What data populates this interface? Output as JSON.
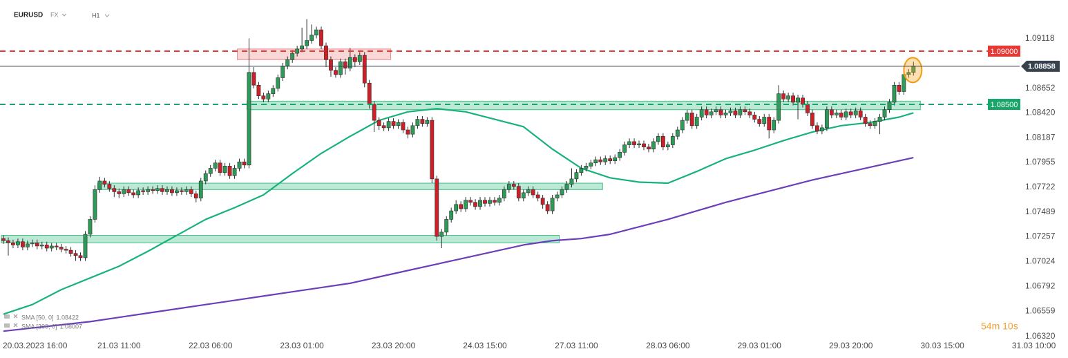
{
  "header": {
    "symbol": "EURUSD",
    "market": "FX",
    "timeframe": "H1"
  },
  "chart_data": {
    "type": "candlestick",
    "timer": "54m 10s",
    "ylim": [
      1.063,
      1.0948
    ],
    "yticks": [
      1.09118,
      1.08652,
      {
        "value": 1.0842,
        "label": "1.08420"
      },
      1.08187,
      1.07955,
      1.07722,
      1.07489,
      1.07257,
      1.07024,
      1.06792,
      1.06559,
      {
        "value": 1.0632,
        "label": "1.06320"
      }
    ],
    "grid": false,
    "bull_color": "#2e9a57",
    "bear_color": "#cc1f28",
    "categories": [
      null,
      null,
      null,
      null,
      null,
      "20.03.2023 16:00",
      null,
      null,
      null,
      null,
      null,
      null,
      null,
      null,
      null,
      null,
      null,
      null,
      null,
      null,
      null,
      null,
      null,
      null,
      "21.03 11:00",
      null,
      null,
      null,
      null,
      null,
      null,
      null,
      null,
      null,
      null,
      null,
      null,
      null,
      null,
      null,
      null,
      null,
      null,
      "22.03 06:00",
      null,
      null,
      null,
      null,
      null,
      null,
      null,
      null,
      null,
      null,
      null,
      null,
      null,
      null,
      null,
      null,
      null,
      null,
      "23.03 01:00",
      null,
      null,
      null,
      null,
      null,
      null,
      null,
      null,
      null,
      null,
      null,
      null,
      null,
      null,
      null,
      null,
      null,
      null,
      "23.03 20:00",
      null,
      null,
      null,
      null,
      null,
      null,
      null,
      null,
      null,
      null,
      null,
      null,
      null,
      null,
      null,
      null,
      null,
      null,
      "24.03 15:00",
      null,
      null,
      null,
      null,
      null,
      null,
      null,
      null,
      null,
      null,
      null,
      null,
      null,
      null,
      null,
      null,
      null,
      null,
      "27.03 11:00",
      null,
      null,
      null,
      null,
      null,
      null,
      null,
      null,
      null,
      null,
      null,
      null,
      null,
      null,
      null,
      null,
      null,
      null,
      "28.03 06:00",
      null,
      null,
      null,
      null,
      null,
      null,
      null,
      null,
      null,
      null,
      null,
      null,
      null,
      null,
      null,
      null,
      null,
      null,
      "29.03 01:00",
      null,
      null,
      null,
      null,
      null,
      null,
      null,
      null,
      null,
      null,
      null,
      null,
      null,
      null,
      null,
      null,
      null,
      null,
      "29.03 20:00",
      null,
      null,
      null,
      null,
      null,
      null,
      null,
      null,
      null,
      null,
      null,
      null,
      null,
      null,
      null,
      null,
      null,
      null,
      "30.03 15:00",
      null,
      null,
      null,
      null,
      null,
      null,
      null,
      null,
      null,
      null,
      null,
      null,
      null,
      null,
      null,
      null,
      null,
      null,
      "31.03 10:00"
    ],
    "open": [
      1.0724,
      1.0722,
      1.072,
      1.0718,
      1.0721,
      1.0716,
      1.0719,
      1.072,
      1.0717,
      1.0718,
      1.0715,
      1.0717,
      1.0716,
      1.0714,
      1.0713,
      1.071,
      1.0708,
      1.0706,
      1.0728,
      1.0742,
      1.077,
      1.0778,
      1.0775,
      1.0771,
      1.0768,
      1.0766,
      1.077,
      1.0767,
      1.0765,
      1.0769,
      1.0768,
      1.077,
      1.0769,
      1.0771,
      1.0768,
      1.077,
      1.0767,
      1.0769,
      1.0768,
      1.077,
      1.0766,
      1.0762,
      1.0778,
      1.0785,
      1.079,
      1.0795,
      1.0786,
      1.0792,
      1.0783,
      1.079,
      1.0796,
      1.0793,
      1.088,
      1.0868,
      1.0858,
      1.0855,
      1.086,
      1.0865,
      1.0875,
      1.0886,
      1.0892,
      1.0898,
      1.0902,
      1.0905,
      1.091,
      1.0915,
      1.092,
      1.0905,
      1.0892,
      1.0882,
      1.0878,
      1.089,
      1.0884,
      1.0894,
      1.089,
      1.0896,
      1.087,
      1.085,
      1.0835,
      1.083,
      1.0828,
      1.0834,
      1.083,
      1.0833,
      1.0826,
      1.0822,
      1.083,
      1.0836,
      1.0832,
      1.0835,
      1.078,
      1.0726,
      1.073,
      1.0742,
      1.075,
      1.0756,
      1.0752,
      1.076,
      1.0758,
      1.0754,
      1.076,
      1.0757,
      1.076,
      1.0758,
      1.0762,
      1.077,
      1.0775,
      1.0773,
      1.0762,
      1.0767,
      1.077,
      1.0765,
      1.0762,
      1.0756,
      1.075,
      1.0762,
      1.0765,
      1.077,
      1.0775,
      1.078,
      1.0786,
      1.079,
      1.0792,
      1.0795,
      1.0798,
      1.0796,
      1.0799,
      1.0797,
      1.08,
      1.0805,
      1.0812,
      1.0815,
      1.0812,
      1.0813,
      1.081,
      1.0808,
      1.0815,
      1.082,
      1.081,
      1.0812,
      1.082,
      1.0826,
      1.0835,
      1.0842,
      1.083,
      1.0838,
      1.0845,
      1.084,
      1.0843,
      1.0845,
      1.084,
      1.0842,
      1.0844,
      1.084,
      1.0845,
      1.0843,
      1.084,
      1.0836,
      1.0832,
      1.0838,
      1.0826,
      1.0835,
      1.086,
      1.0855,
      1.0858,
      1.0852,
      1.0856,
      1.085,
      1.0842,
      1.083,
      1.0825,
      1.0828,
      1.0845,
      1.084,
      1.0842,
      1.0838,
      1.0843,
      1.084,
      1.0844,
      1.0838,
      1.0832,
      1.083,
      1.0834,
      1.0838,
      1.0845,
      1.0852,
      1.0868,
      1.0862,
      1.0878,
      1.088,
      null,
      null,
      null,
      null,
      null,
      null,
      null,
      null,
      null,
      null,
      null,
      null,
      null,
      null,
      null,
      null,
      null,
      null,
      null,
      null,
      null,
      null,
      null,
      null,
      null
    ],
    "high": [
      1.0727,
      1.0725,
      1.0723,
      1.0724,
      1.0724,
      1.0722,
      1.0723,
      1.0723,
      1.0721,
      1.0721,
      1.072,
      1.072,
      1.0719,
      1.0717,
      1.0716,
      1.0713,
      1.0711,
      1.0731,
      1.0745,
      1.0774,
      1.0782,
      1.0781,
      1.0778,
      1.0774,
      1.0771,
      1.0773,
      1.0773,
      1.077,
      1.0772,
      1.0772,
      1.0773,
      1.0773,
      1.0774,
      1.0774,
      1.0773,
      1.0773,
      1.0772,
      1.0772,
      1.0773,
      1.0773,
      1.0769,
      1.0781,
      1.0788,
      1.0793,
      1.0798,
      1.0798,
      1.0795,
      1.0795,
      1.0793,
      1.0799,
      1.0799,
      1.0912,
      1.0885,
      1.0871,
      1.0861,
      1.0863,
      1.0868,
      1.0878,
      1.0889,
      1.0895,
      1.0901,
      1.0905,
      1.0922,
      1.093,
      1.0925,
      1.0923,
      1.0923,
      1.0908,
      1.0895,
      1.0885,
      1.0893,
      1.0893,
      1.0903,
      1.0897,
      1.0899,
      1.0899,
      1.0873,
      1.0853,
      1.0838,
      1.0833,
      1.0837,
      1.0837,
      1.0836,
      1.0836,
      1.0829,
      1.0833,
      1.0839,
      1.0839,
      1.0838,
      1.0838,
      1.0783,
      1.0733,
      1.0745,
      1.0753,
      1.076,
      1.0759,
      1.0763,
      1.0763,
      1.0761,
      1.0763,
      1.0763,
      1.0763,
      1.0763,
      1.0765,
      1.0773,
      1.0778,
      1.0778,
      1.0776,
      1.077,
      1.0773,
      1.0773,
      1.0768,
      1.0765,
      1.0759,
      1.0765,
      1.0768,
      1.0773,
      1.0778,
      1.079,
      1.0789,
      1.0793,
      1.0795,
      1.0798,
      1.0801,
      1.0801,
      1.0802,
      1.0802,
      1.0803,
      1.0808,
      1.0815,
      1.0818,
      1.0818,
      1.0816,
      1.0816,
      1.0813,
      1.0818,
      1.0823,
      1.0823,
      1.0815,
      1.0823,
      1.0829,
      1.0838,
      1.0845,
      1.0845,
      1.0841,
      1.0848,
      1.0848,
      1.0846,
      1.0848,
      1.0848,
      1.0845,
      1.0847,
      1.0847,
      1.0848,
      1.0848,
      1.0846,
      1.0843,
      1.0839,
      1.0841,
      1.0841,
      1.0838,
      1.0868,
      1.0863,
      1.0861,
      1.0861,
      1.0859,
      1.0859,
      1.0853,
      1.0845,
      1.0833,
      1.0831,
      1.0848,
      1.0848,
      1.0845,
      1.0845,
      1.0846,
      1.0846,
      1.0847,
      1.0847,
      1.0841,
      1.0835,
      1.0837,
      1.0841,
      1.0848,
      1.0855,
      1.0871,
      1.0871,
      1.0881,
      1.0883,
      1.089,
      null,
      null,
      null,
      null,
      null,
      null,
      null,
      null,
      null,
      null,
      null,
      null,
      null,
      null,
      null,
      null,
      null,
      null,
      null,
      null,
      null,
      null,
      null,
      null,
      null
    ],
    "low": [
      1.0719,
      1.0708,
      1.0715,
      1.0715,
      1.0713,
      1.0713,
      1.0716,
      1.0714,
      1.0714,
      1.0712,
      1.0712,
      1.0713,
      1.0711,
      1.071,
      1.0707,
      1.0703,
      1.0703,
      1.0703,
      1.0725,
      1.0739,
      1.0767,
      1.0772,
      1.0768,
      1.0763,
      1.0762,
      1.0763,
      1.0764,
      1.0762,
      1.0762,
      1.0765,
      1.0765,
      1.0766,
      1.0766,
      1.0765,
      1.0765,
      1.0764,
      1.0764,
      1.0765,
      1.0765,
      1.0763,
      1.0758,
      1.0759,
      1.0775,
      1.0782,
      1.0787,
      1.0783,
      1.0783,
      1.078,
      1.078,
      1.0787,
      1.079,
      1.079,
      1.0865,
      1.0855,
      1.0852,
      1.0852,
      1.0857,
      1.0862,
      1.0872,
      1.0883,
      1.0889,
      1.0895,
      1.0899,
      1.0902,
      1.0907,
      1.0912,
      1.0902,
      1.0885,
      1.0876,
      1.0875,
      1.0875,
      1.0878,
      1.0881,
      1.0885,
      1.0887,
      1.0866,
      1.0846,
      1.0824,
      1.0826,
      1.0825,
      1.0825,
      1.0827,
      1.0827,
      1.0823,
      1.0818,
      1.0819,
      1.0827,
      1.0829,
      1.0829,
      1.0776,
      1.0722,
      1.0715,
      1.0727,
      1.0739,
      1.0747,
      1.0749,
      1.0749,
      1.0755,
      1.0751,
      1.0751,
      1.0754,
      1.0754,
      1.0755,
      1.0755,
      1.0759,
      1.0767,
      1.077,
      1.0759,
      1.0759,
      1.0764,
      1.0762,
      1.0759,
      1.0752,
      1.0747,
      1.0747,
      1.0759,
      1.0762,
      1.0767,
      1.0772,
      1.0777,
      1.0783,
      1.0787,
      1.0789,
      1.0792,
      1.0793,
      1.0793,
      1.0794,
      1.0794,
      1.0797,
      1.0802,
      1.0809,
      1.0809,
      1.0809,
      1.0807,
      1.0805,
      1.0805,
      1.0812,
      1.0807,
      1.0807,
      1.0809,
      1.0817,
      1.0823,
      1.0832,
      1.0827,
      1.0827,
      1.0835,
      1.0837,
      1.0837,
      1.084,
      1.0837,
      1.0837,
      1.0839,
      1.0837,
      1.0837,
      1.084,
      1.0837,
      1.0833,
      1.0829,
      1.0829,
      1.0818,
      1.0823,
      1.0832,
      1.0852,
      1.0852,
      1.0849,
      1.0836,
      1.0847,
      1.0839,
      1.0827,
      1.0822,
      1.0822,
      1.0825,
      1.0837,
      1.0837,
      1.0835,
      1.0835,
      1.0837,
      1.0837,
      1.0835,
      1.0829,
      1.0827,
      1.0827,
      1.0822,
      1.0835,
      1.0842,
      1.0849,
      1.0859,
      1.0859,
      1.0875,
      1.0877,
      null,
      null,
      null,
      null,
      null,
      null,
      null,
      null,
      null,
      null,
      null,
      null,
      null,
      null,
      null,
      null,
      null,
      null,
      null,
      null,
      null,
      null,
      null,
      null,
      null
    ],
    "close": [
      1.0722,
      1.072,
      1.0718,
      1.0721,
      1.0716,
      1.0719,
      1.072,
      1.0717,
      1.0718,
      1.0715,
      1.0717,
      1.0716,
      1.0714,
      1.0713,
      1.071,
      1.0708,
      1.0706,
      1.0728,
      1.0742,
      1.077,
      1.0778,
      1.0775,
      1.0771,
      1.0768,
      1.0766,
      1.077,
      1.0767,
      1.0765,
      1.0769,
      1.0768,
      1.077,
      1.0769,
      1.0771,
      1.0768,
      1.077,
      1.0767,
      1.0769,
      1.0768,
      1.077,
      1.0766,
      1.0762,
      1.0778,
      1.0785,
      1.079,
      1.0795,
      1.0786,
      1.0792,
      1.0783,
      1.079,
      1.0796,
      1.0793,
      1.088,
      1.0868,
      1.0858,
      1.0855,
      1.086,
      1.0865,
      1.0875,
      1.0886,
      1.0892,
      1.0898,
      1.0902,
      1.0905,
      1.091,
      1.0915,
      1.092,
      1.0905,
      1.0892,
      1.0882,
      1.0878,
      1.089,
      1.0884,
      1.0894,
      1.089,
      1.0896,
      1.087,
      1.085,
      1.0835,
      1.083,
      1.0828,
      1.0834,
      1.083,
      1.0833,
      1.0826,
      1.0822,
      1.083,
      1.0836,
      1.0832,
      1.0835,
      1.078,
      1.0726,
      1.073,
      1.0742,
      1.075,
      1.0756,
      1.0752,
      1.076,
      1.0758,
      1.0754,
      1.076,
      1.0757,
      1.076,
      1.0758,
      1.0762,
      1.077,
      1.0775,
      1.0773,
      1.0762,
      1.0767,
      1.077,
      1.0765,
      1.0762,
      1.0756,
      1.075,
      1.0762,
      1.0765,
      1.077,
      1.0775,
      1.078,
      1.0786,
      1.079,
      1.0792,
      1.0795,
      1.0798,
      1.0796,
      1.0799,
      1.0797,
      1.08,
      1.0805,
      1.0812,
      1.0815,
      1.0812,
      1.0813,
      1.081,
      1.0808,
      1.0815,
      1.082,
      1.081,
      1.0812,
      1.082,
      1.0826,
      1.0835,
      1.0842,
      1.083,
      1.0838,
      1.0845,
      1.084,
      1.0843,
      1.0845,
      1.084,
      1.0842,
      1.0844,
      1.084,
      1.0845,
      1.0843,
      1.084,
      1.0836,
      1.0832,
      1.0838,
      1.0826,
      1.0835,
      1.086,
      1.0855,
      1.0858,
      1.0852,
      1.0856,
      1.085,
      1.0842,
      1.083,
      1.0825,
      1.0828,
      1.0845,
      1.084,
      1.0842,
      1.0838,
      1.0843,
      1.084,
      1.0844,
      1.0838,
      1.0832,
      1.083,
      1.0834,
      1.0838,
      1.0845,
      1.0852,
      1.0868,
      1.0862,
      1.0878,
      1.088,
      1.0886,
      null,
      null,
      null,
      null,
      null,
      null,
      null,
      null,
      null,
      null,
      null,
      null,
      null,
      null,
      null,
      null,
      null,
      null,
      null,
      null,
      null,
      null,
      null,
      null,
      null
    ],
    "series": [
      {
        "name": "SMA [50, 0]",
        "legend_value": "1.08422",
        "color": "#17b27a",
        "x": [
          0,
          6,
          12,
          18,
          24,
          30,
          36,
          42,
          48,
          54,
          60,
          66,
          72,
          78,
          84,
          90,
          96,
          102,
          108,
          114,
          120,
          126,
          132,
          138,
          144,
          150,
          156,
          162,
          168,
          174,
          180,
          186,
          189
        ],
        "values": [
          1.0653,
          1.0662,
          1.0676,
          1.0687,
          1.0698,
          1.0712,
          1.0727,
          1.0742,
          1.0753,
          1.0765,
          1.0785,
          1.0804,
          1.082,
          1.0835,
          1.0843,
          1.0846,
          1.0843,
          1.0836,
          1.0829,
          1.0808,
          1.079,
          1.0781,
          1.0777,
          1.0776,
          1.0787,
          1.0799,
          1.0807,
          1.0816,
          1.0824,
          1.083,
          1.0833,
          1.0838,
          1.0842
        ]
      },
      {
        "name": "SMA [200, 0]",
        "legend_value": "1.08007",
        "color": "#6a3fb8",
        "x": [
          0,
          6,
          12,
          18,
          24,
          30,
          36,
          42,
          48,
          54,
          60,
          66,
          72,
          78,
          84,
          90,
          96,
          102,
          108,
          114,
          120,
          126,
          132,
          138,
          144,
          150,
          156,
          162,
          168,
          174,
          180,
          186,
          189
        ],
        "values": [
          1.0637,
          1.064,
          1.0643,
          1.0646,
          1.065,
          1.0654,
          1.0658,
          1.0662,
          1.0666,
          1.067,
          1.0674,
          1.0678,
          1.0682,
          1.0688,
          1.0694,
          1.07,
          1.0706,
          1.0712,
          1.0718,
          1.0722,
          1.0724,
          1.0728,
          1.0735,
          1.0742,
          1.075,
          1.0758,
          1.0765,
          1.0772,
          1.0779,
          1.0785,
          1.0791,
          1.0797,
          1.08
        ]
      }
    ],
    "zones": [
      {
        "start": 49,
        "end": 80,
        "low": 1.0892,
        "high": 1.0902,
        "color": "#f28b8b"
      },
      {
        "start": 51,
        "end": 190,
        "low": 1.0845,
        "high": 1.0853,
        "color": "#3fbf86"
      },
      {
        "start": 20,
        "end": 124,
        "low": 1.077,
        "high": 1.0776,
        "color": "#3fbf86"
      },
      {
        "start": 0,
        "end": 115,
        "low": 1.072,
        "high": 1.0727,
        "color": "#3fbf86"
      }
    ],
    "levels": [
      {
        "value": 1.09,
        "label": "1.09000",
        "color": "#e53935",
        "style": "dashed"
      },
      {
        "value": 1.085,
        "label": "1.08500",
        "color": "#17a56a",
        "style": "dashed"
      },
      {
        "value": 1.08858,
        "label": "1.08858",
        "color": "#37424d",
        "style": "solid"
      }
    ]
  }
}
